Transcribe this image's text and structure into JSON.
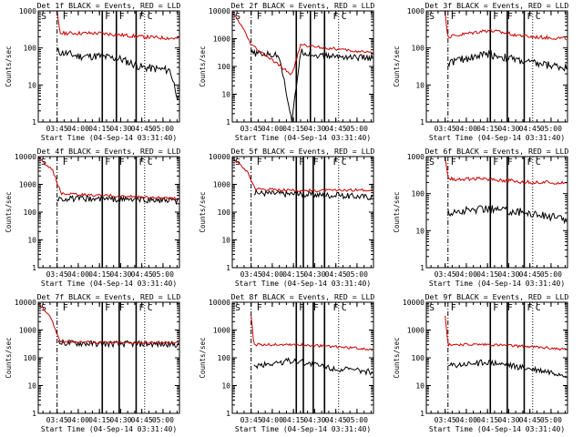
{
  "chart_data": [
    {
      "type": "line",
      "title": "Det 1f BLACK = Events, RED = LLD",
      "xlabel": "Start Time (04-Sep-14 03:31:40)",
      "ylabel": "Counts/sec",
      "ylim": [
        1,
        1000
      ],
      "yscale": "log",
      "xlim": [
        "03:31:40",
        "05:11:40"
      ],
      "x_ticks": [
        "03:45",
        "04:00",
        "04:15",
        "04:30",
        "04:45",
        "05:00"
      ],
      "y_ticks": [
        "1",
        "10",
        "100",
        "1000"
      ],
      "markers": {
        "dashdot": [
          "03:45"
        ],
        "solid": [
          "04:17",
          "04:27",
          "04:41"
        ],
        "dotted": [
          "04:47"
        ]
      },
      "corner_labels": [
        "S",
        "F",
        "F",
        "F",
        "F",
        "C"
      ],
      "series": [
        {
          "name": "BLACK = Events",
          "color": "#000000",
          "values": [
            {
              "t": "03:45",
              "y": 80
            },
            {
              "t": "04:00",
              "y": 60
            },
            {
              "t": "04:15",
              "y": 60
            },
            {
              "t": "04:30",
              "y": 50
            },
            {
              "t": "04:45",
              "y": 30
            },
            {
              "t": "05:05",
              "y": 25
            },
            {
              "t": "05:11",
              "y": 4
            }
          ]
        },
        {
          "name": "RED = LLD",
          "color": "#cc0000",
          "values": [
            {
              "t": "03:45",
              "y": 900
            },
            {
              "t": "03:47",
              "y": 250
            },
            {
              "t": "04:15",
              "y": 250
            },
            {
              "t": "04:45",
              "y": 200
            },
            {
              "t": "05:11",
              "y": 180
            }
          ]
        }
      ]
    },
    {
      "type": "line",
      "title": "Det 2f BLACK = Events, RED = LLD",
      "xlabel": "Start Time (04-Sep-14 03:31:40)",
      "ylabel": "Counts/sec",
      "ylim": [
        1,
        10000
      ],
      "yscale": "log",
      "xlim": [
        "03:31:40",
        "05:11:40"
      ],
      "x_ticks": [
        "03:45",
        "04:00",
        "04:15",
        "04:30",
        "04:45",
        "05:00"
      ],
      "y_ticks": [
        "1",
        "10",
        "100",
        "1000",
        "10000"
      ],
      "markers": {
        "dashdot": [
          "03:45"
        ],
        "solid": [
          "04:17",
          "04:27",
          "04:37"
        ],
        "dotted": [
          "04:47"
        ]
      },
      "corner_labels": [
        "S",
        "F",
        "F",
        "F",
        "F",
        "C"
      ],
      "series": [
        {
          "name": "BLACK = Events",
          "color": "#000000",
          "values": [
            {
              "t": "03:45",
              "y": 300
            },
            {
              "t": "04:05",
              "y": 250
            },
            {
              "t": "04:14",
              "y": 1
            },
            {
              "t": "04:20",
              "y": 350
            },
            {
              "t": "04:30",
              "y": 250
            },
            {
              "t": "05:11",
              "y": 200
            }
          ]
        },
        {
          "name": "RED = LLD",
          "color": "#cc0000",
          "values": [
            {
              "t": "03:31",
              "y": 10000
            },
            {
              "t": "03:38",
              "y": 3000
            },
            {
              "t": "03:45",
              "y": 600
            },
            {
              "t": "04:14",
              "y": 50
            },
            {
              "t": "04:20",
              "y": 600
            },
            {
              "t": "05:11",
              "y": 300
            }
          ]
        }
      ]
    },
    {
      "type": "line",
      "title": "Det 3f BLACK = Events, RED = LLD",
      "xlabel": "Start Time (04-Sep-14 03:31:40)",
      "ylabel": "Counts/sec",
      "ylim": [
        1,
        1000
      ],
      "yscale": "log",
      "xlim": [
        "03:31:40",
        "05:11:40"
      ],
      "x_ticks": [
        "03:45",
        "04:00",
        "04:15",
        "04:30",
        "04:45",
        "05:00"
      ],
      "y_ticks": [
        "1",
        "10",
        "100",
        "1000"
      ],
      "markers": {
        "dashdot": [
          "03:47"
        ],
        "solid": [
          "04:17",
          "04:29",
          "04:41"
        ],
        "dotted": [
          "04:47"
        ]
      },
      "corner_labels": [
        "S",
        "F",
        "F",
        "F",
        "F",
        "C"
      ],
      "series": [
        {
          "name": "BLACK = Events",
          "color": "#000000",
          "values": [
            {
              "t": "03:47",
              "y": 40
            },
            {
              "t": "04:15",
              "y": 70
            },
            {
              "t": "04:45",
              "y": 40
            },
            {
              "t": "05:11",
              "y": 30
            }
          ]
        },
        {
          "name": "RED = LLD",
          "color": "#cc0000",
          "values": [
            {
              "t": "03:45",
              "y": 900
            },
            {
              "t": "03:47",
              "y": 200
            },
            {
              "t": "04:15",
              "y": 300
            },
            {
              "t": "04:45",
              "y": 200
            },
            {
              "t": "05:11",
              "y": 180
            }
          ]
        }
      ]
    },
    {
      "type": "line",
      "title": "Det 4f BLACK = Events, RED = LLD",
      "xlabel": "Start Time (04-Sep-14 03:31:40)",
      "ylabel": "Counts/sec",
      "ylim": [
        1,
        10000
      ],
      "yscale": "log",
      "xlim": [
        "03:31:40",
        "05:11:40"
      ],
      "x_ticks": [
        "03:45",
        "04:00",
        "04:15",
        "04:30",
        "04:45",
        "05:00"
      ],
      "y_ticks": [
        "1",
        "10",
        "100",
        "1000",
        "10000"
      ],
      "markers": {
        "dashdot": [
          "03:45"
        ],
        "solid": [
          "04:17",
          "04:29",
          "04:41"
        ],
        "dotted": [
          "04:47"
        ]
      },
      "corner_labels": [
        "S",
        "F",
        "F",
        "F",
        "F",
        "C"
      ],
      "series": [
        {
          "name": "BLACK = Events",
          "color": "#000000",
          "values": [
            {
              "t": "03:45",
              "y": 300
            },
            {
              "t": "04:15",
              "y": 300
            },
            {
              "t": "04:45",
              "y": 280
            },
            {
              "t": "05:11",
              "y": 250
            }
          ]
        },
        {
          "name": "RED = LLD",
          "color": "#cc0000",
          "values": [
            {
              "t": "03:31",
              "y": 10000
            },
            {
              "t": "03:42",
              "y": 3000
            },
            {
              "t": "03:48",
              "y": 450
            },
            {
              "t": "04:15",
              "y": 400
            },
            {
              "t": "04:45",
              "y": 350
            },
            {
              "t": "05:11",
              "y": 300
            }
          ]
        }
      ]
    },
    {
      "type": "line",
      "title": "Det 5f BLACK = Events, RED = LLD",
      "xlabel": "Start Time (04-Sep-14 03:31:40)",
      "ylabel": "Counts/sec",
      "ylim": [
        1,
        10000
      ],
      "yscale": "log",
      "xlim": [
        "03:31:40",
        "05:11:40"
      ],
      "x_ticks": [
        "03:45",
        "04:00",
        "04:15",
        "04:30",
        "04:45",
        "05:00"
      ],
      "y_ticks": [
        "1",
        "10",
        "100",
        "1000",
        "10000"
      ],
      "markers": {
        "dashdot": [
          "03:45"
        ],
        "solid": [
          "04:17",
          "04:22",
          "04:29",
          "04:37"
        ],
        "dotted": [
          "04:47"
        ]
      },
      "corner_labels": [
        "S",
        "F",
        "F",
        "F",
        "F",
        "C"
      ],
      "series": [
        {
          "name": "BLACK = Events",
          "color": "#000000",
          "values": [
            {
              "t": "03:47",
              "y": 500
            },
            {
              "t": "04:15",
              "y": 450
            },
            {
              "t": "04:45",
              "y": 400
            },
            {
              "t": "05:11",
              "y": 350
            }
          ]
        },
        {
          "name": "RED = LLD",
          "color": "#cc0000",
          "values": [
            {
              "t": "03:31",
              "y": 10000
            },
            {
              "t": "03:42",
              "y": 3000
            },
            {
              "t": "03:48",
              "y": 700
            },
            {
              "t": "04:15",
              "y": 600
            },
            {
              "t": "04:45",
              "y": 600
            },
            {
              "t": "05:11",
              "y": 650
            }
          ]
        }
      ]
    },
    {
      "type": "line",
      "title": "Det 6f BLACK = Events, RED = LLD",
      "xlabel": "Start Time (04-Sep-14 03:31:40)",
      "ylabel": "Counts/sec",
      "ylim": [
        1,
        1000
      ],
      "yscale": "log",
      "xlim": [
        "03:31:40",
        "05:11:40"
      ],
      "x_ticks": [
        "03:45",
        "04:00",
        "04:15",
        "04:30",
        "04:45",
        "05:00"
      ],
      "y_ticks": [
        "1",
        "10",
        "100",
        "1000"
      ],
      "markers": {
        "dashdot": [
          "03:47"
        ],
        "solid": [
          "04:17",
          "04:29",
          "04:41"
        ],
        "dotted": [
          "04:47"
        ]
      },
      "corner_labels": [
        "S",
        "F",
        "F",
        "F",
        "F",
        "C"
      ],
      "series": [
        {
          "name": "BLACK = Events",
          "color": "#000000",
          "values": [
            {
              "t": "03:47",
              "y": 30
            },
            {
              "t": "04:15",
              "y": 40
            },
            {
              "t": "04:45",
              "y": 30
            },
            {
              "t": "05:11",
              "y": 20
            }
          ]
        },
        {
          "name": "RED = LLD",
          "color": "#cc0000",
          "values": [
            {
              "t": "03:45",
              "y": 900
            },
            {
              "t": "03:47",
              "y": 250
            },
            {
              "t": "04:15",
              "y": 250
            },
            {
              "t": "04:45",
              "y": 200
            },
            {
              "t": "05:11",
              "y": 200
            }
          ]
        }
      ]
    },
    {
      "type": "line",
      "title": "Det 7f BLACK = Events, RED = LLD",
      "xlabel": "Start Time (04-Sep-14 03:31:40)",
      "ylabel": "Counts/sec",
      "ylim": [
        1,
        10000
      ],
      "yscale": "log",
      "xlim": [
        "03:31:40",
        "05:11:40"
      ],
      "x_ticks": [
        "03:45",
        "04:00",
        "04:15",
        "04:30",
        "04:45",
        "05:00"
      ],
      "y_ticks": [
        "1",
        "10",
        "100",
        "1000",
        "10000"
      ],
      "markers": {
        "dashdot": [
          "03:45"
        ],
        "solid": [
          "04:17",
          "04:29",
          "04:41"
        ],
        "dotted": [
          "04:47"
        ]
      },
      "corner_labels": [
        "S",
        "F",
        "F",
        "F",
        "F",
        "C"
      ],
      "series": [
        {
          "name": "BLACK = Events",
          "color": "#000000",
          "values": [
            {
              "t": "03:46",
              "y": 350
            },
            {
              "t": "04:15",
              "y": 320
            },
            {
              "t": "04:45",
              "y": 320
            },
            {
              "t": "05:11",
              "y": 300
            }
          ]
        },
        {
          "name": "RED = LLD",
          "color": "#cc0000",
          "values": [
            {
              "t": "03:31",
              "y": 10000
            },
            {
              "t": "03:40",
              "y": 3000
            },
            {
              "t": "03:47",
              "y": 400
            },
            {
              "t": "04:15",
              "y": 350
            },
            {
              "t": "04:45",
              "y": 350
            },
            {
              "t": "05:11",
              "y": 350
            }
          ]
        }
      ]
    },
    {
      "type": "line",
      "title": "Det 8f BLACK = Events, RED = LLD",
      "xlabel": "Start Time (04-Sep-14 03:31:40)",
      "ylabel": "Counts/sec",
      "ylim": [
        1,
        10000
      ],
      "yscale": "log",
      "xlim": [
        "03:31:40",
        "05:11:40"
      ],
      "x_ticks": [
        "03:45",
        "04:00",
        "04:15",
        "04:30",
        "04:45",
        "05:00"
      ],
      "y_ticks": [
        "1",
        "10",
        "100",
        "1000",
        "10000"
      ],
      "markers": {
        "dashdot": [
          "03:45"
        ],
        "solid": [
          "04:17",
          "04:22",
          "04:29",
          "04:37"
        ],
        "dotted": [
          "04:47"
        ]
      },
      "corner_labels": [
        "S",
        "F",
        "F",
        "F",
        "F",
        "C"
      ],
      "series": [
        {
          "name": "BLACK = Events",
          "color": "#000000",
          "values": [
            {
              "t": "03:47",
              "y": 50
            },
            {
              "t": "04:15",
              "y": 80
            },
            {
              "t": "04:45",
              "y": 40
            },
            {
              "t": "05:11",
              "y": 30
            }
          ]
        },
        {
          "name": "RED = LLD",
          "color": "#cc0000",
          "values": [
            {
              "t": "03:45",
              "y": 3000
            },
            {
              "t": "03:47",
              "y": 300
            },
            {
              "t": "04:15",
              "y": 300
            },
            {
              "t": "04:45",
              "y": 250
            },
            {
              "t": "05:11",
              "y": 200
            }
          ]
        }
      ]
    },
    {
      "type": "line",
      "title": "Det 9f BLACK = Events, RED = LLD",
      "xlabel": "Start Time (04-Sep-14 03:31:40)",
      "ylabel": "Counts/sec",
      "ylim": [
        1,
        10000
      ],
      "yscale": "log",
      "xlim": [
        "03:31:40",
        "05:11:40"
      ],
      "x_ticks": [
        "03:45",
        "04:00",
        "04:15",
        "04:30",
        "04:45",
        "05:00"
      ],
      "y_ticks": [
        "1",
        "10",
        "100",
        "1000",
        "10000"
      ],
      "markers": {
        "dashdot": [
          "03:47"
        ],
        "solid": [
          "04:17",
          "04:29",
          "04:41"
        ],
        "dotted": [
          "04:47"
        ]
      },
      "corner_labels": [
        "S",
        "F",
        "F",
        "F",
        "F",
        "C"
      ],
      "series": [
        {
          "name": "BLACK = Events",
          "color": "#000000",
          "values": [
            {
              "t": "03:47",
              "y": 50
            },
            {
              "t": "04:15",
              "y": 70
            },
            {
              "t": "04:45",
              "y": 40
            },
            {
              "t": "05:11",
              "y": 25
            }
          ]
        },
        {
          "name": "RED = LLD",
          "color": "#cc0000",
          "values": [
            {
              "t": "03:45",
              "y": 3000
            },
            {
              "t": "03:47",
              "y": 300
            },
            {
              "t": "04:15",
              "y": 300
            },
            {
              "t": "04:45",
              "y": 250
            },
            {
              "t": "05:11",
              "y": 200
            }
          ]
        }
      ]
    }
  ]
}
